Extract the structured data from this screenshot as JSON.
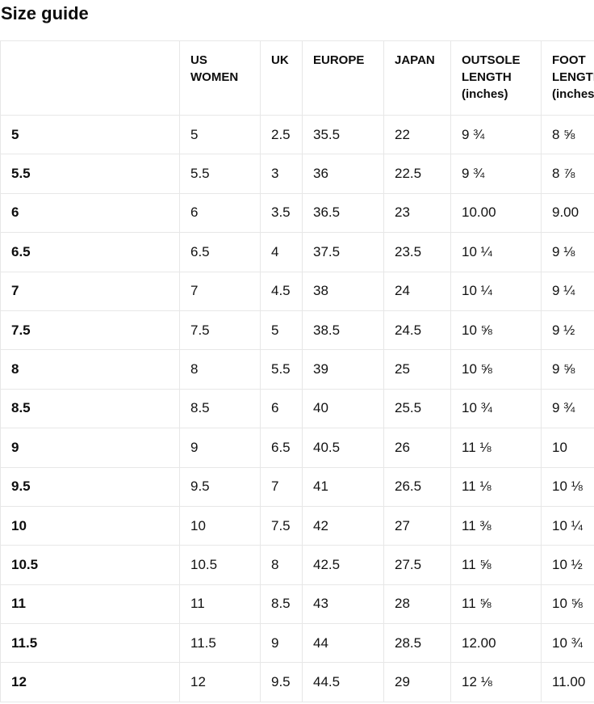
{
  "page": {
    "title": "Size guide"
  },
  "colors": {
    "background": "#ffffff",
    "text": "#121212",
    "heading_text": "#0d0d0d",
    "table_border": "#e7e7e7"
  },
  "table": {
    "columns": [
      {
        "key": "label",
        "label": ""
      },
      {
        "key": "us_women",
        "label": "US WOMEN"
      },
      {
        "key": "uk",
        "label": "UK"
      },
      {
        "key": "europe",
        "label": "EUROPE"
      },
      {
        "key": "japan",
        "label": "JAPAN"
      },
      {
        "key": "outsole_length",
        "label": "OUTSOLE LENGTH (inches)"
      },
      {
        "key": "foot_length",
        "label": "FOOT LENGTH (inches)"
      }
    ],
    "rows": [
      {
        "label": "5",
        "us_women": "5",
        "uk": "2.5",
        "europe": "35.5",
        "japan": "22",
        "outsole_length": "9 ¾",
        "foot_length": "8 ⅝"
      },
      {
        "label": "5.5",
        "us_women": "5.5",
        "uk": "3",
        "europe": "36",
        "japan": "22.5",
        "outsole_length": "9 ¾",
        "foot_length": "8 ⅞"
      },
      {
        "label": "6",
        "us_women": "6",
        "uk": "3.5",
        "europe": "36.5",
        "japan": "23",
        "outsole_length": "10.00",
        "foot_length": "9.00"
      },
      {
        "label": "6.5",
        "us_women": "6.5",
        "uk": "4",
        "europe": "37.5",
        "japan": "23.5",
        "outsole_length": "10 ¼",
        "foot_length": "9 ⅛"
      },
      {
        "label": "7",
        "us_women": "7",
        "uk": "4.5",
        "europe": "38",
        "japan": "24",
        "outsole_length": "10 ¼",
        "foot_length": "9 ¼"
      },
      {
        "label": "7.5",
        "us_women": "7.5",
        "uk": "5",
        "europe": "38.5",
        "japan": "24.5",
        "outsole_length": "10 ⅝",
        "foot_length": "9 ½"
      },
      {
        "label": "8",
        "us_women": "8",
        "uk": "5.5",
        "europe": "39",
        "japan": "25",
        "outsole_length": "10 ⅝",
        "foot_length": "9 ⅝"
      },
      {
        "label": "8.5",
        "us_women": "8.5",
        "uk": "6",
        "europe": "40",
        "japan": "25.5",
        "outsole_length": "10 ¾",
        "foot_length": "9 ¾"
      },
      {
        "label": "9",
        "us_women": "9",
        "uk": "6.5",
        "europe": "40.5",
        "japan": "26",
        "outsole_length": "11 ⅛",
        "foot_length": "10"
      },
      {
        "label": "9.5",
        "us_women": "9.5",
        "uk": "7",
        "europe": "41",
        "japan": "26.5",
        "outsole_length": "11 ⅛",
        "foot_length": "10 ⅛"
      },
      {
        "label": "10",
        "us_women": "10",
        "uk": "7.5",
        "europe": "42",
        "japan": "27",
        "outsole_length": "11 ⅜",
        "foot_length": "10 ¼"
      },
      {
        "label": "10.5",
        "us_women": "10.5",
        "uk": "8",
        "europe": "42.5",
        "japan": "27.5",
        "outsole_length": "11 ⅝",
        "foot_length": "10 ½"
      },
      {
        "label": "11",
        "us_women": "11",
        "uk": "8.5",
        "europe": "43",
        "japan": "28",
        "outsole_length": "11 ⅝",
        "foot_length": "10 ⅝"
      },
      {
        "label": "11.5",
        "us_women": "11.5",
        "uk": "9",
        "europe": "44",
        "japan": "28.5",
        "outsole_length": "12.00",
        "foot_length": "10 ¾"
      },
      {
        "label": "12",
        "us_women": "12",
        "uk": "9.5",
        "europe": "44.5",
        "japan": "29",
        "outsole_length": "12 ⅛",
        "foot_length": "11.00"
      }
    ]
  }
}
